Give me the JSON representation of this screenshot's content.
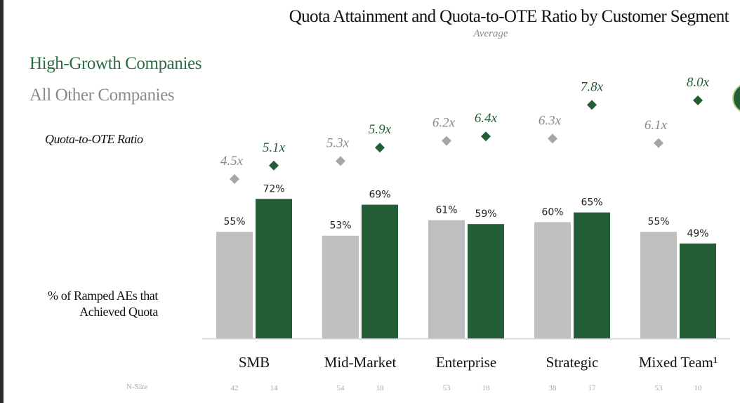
{
  "chart_data": {
    "type": "bar",
    "title": "Quota Attainment and Quota-to-OTE Ratio by Customer Segment",
    "subtitle": "Average",
    "categories": [
      "SMB",
      "Mid-Market",
      "Enterprise",
      "Strategic",
      "Mixed Team¹"
    ],
    "legend": [
      "High-Growth Companies",
      "All Other Companies"
    ],
    "legend_placement": "top-left",
    "ratio_label": "Quota-to-OTE Ratio",
    "pct_label_line1": "% of Ramped AEs that",
    "pct_label_line2": "Achieved Quota",
    "nsize_label": "N-Size",
    "series": [
      {
        "name": "All Other Companies",
        "color": "#bfbfbf",
        "marker_color": "#a6a6a6",
        "label_color": "#8a8a8a",
        "values": [
          55,
          53,
          61,
          60,
          55
        ],
        "value_labels": [
          "55%",
          "53%",
          "61%",
          "60%",
          "55%"
        ],
        "ratio": [
          4.5,
          5.3,
          6.2,
          6.3,
          6.1
        ],
        "ratio_labels": [
          "4.5x",
          "5.3x",
          "6.2x",
          "6.3x",
          "6.1x"
        ],
        "n_size": [
          "42",
          "54",
          "53",
          "38",
          "53"
        ]
      },
      {
        "name": "High-Growth Companies",
        "color": "#245e36",
        "marker_color": "#245e36",
        "label_color": "#245e36",
        "values": [
          72,
          69,
          59,
          65,
          49
        ],
        "value_labels": [
          "72%",
          "69%",
          "59%",
          "65%",
          "49%"
        ],
        "ratio": [
          5.1,
          5.9,
          6.4,
          7.8,
          8.0
        ],
        "ratio_labels": [
          "5.1x",
          "5.9x",
          "6.4x",
          "7.8x",
          "8.0x"
        ],
        "n_size": [
          "14",
          "18",
          "18",
          "17",
          "10"
        ]
      }
    ],
    "ylim": [
      0,
      100
    ],
    "grid": false
  }
}
